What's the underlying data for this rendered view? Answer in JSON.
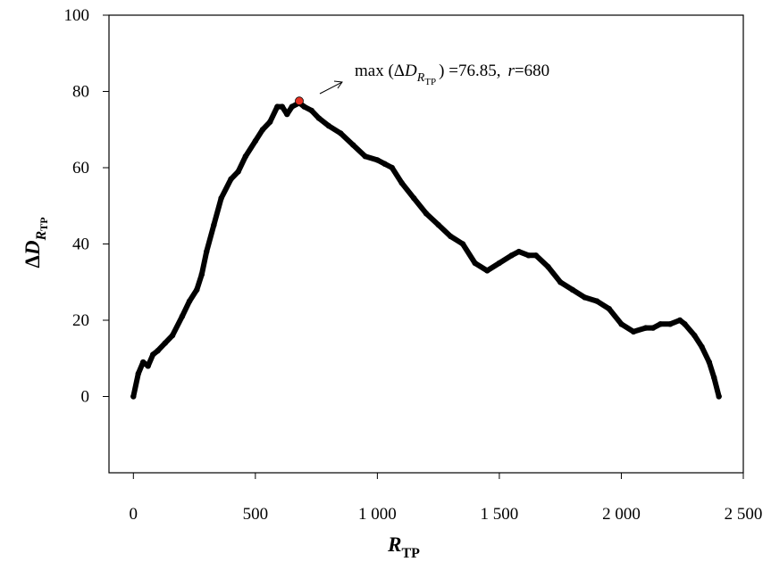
{
  "chart_data": {
    "type": "line",
    "xlabel": {
      "main": "R",
      "sub": "TP"
    },
    "ylabel": {
      "delta": "Δ",
      "main": "D",
      "sub_main": "R",
      "sub_sub": "TP"
    },
    "xlim": [
      -100,
      2500
    ],
    "ylim": [
      -20,
      100
    ],
    "x_ticks": [
      0,
      500,
      1000,
      1500,
      2000,
      2500
    ],
    "x_tick_labels": [
      "0",
      "500",
      "1 000",
      "1 500",
      "2 000",
      "2 500"
    ],
    "y_ticks": [
      0,
      20,
      40,
      60,
      80,
      100
    ],
    "y_tick_labels": [
      "0",
      "20",
      "40",
      "60",
      "80",
      "100"
    ],
    "grid": false,
    "series": [
      {
        "color": "#000000",
        "x": [
          0,
          20,
          40,
          60,
          80,
          100,
          130,
          160,
          200,
          230,
          260,
          280,
          300,
          330,
          360,
          400,
          430,
          460,
          500,
          530,
          560,
          590,
          610,
          630,
          650,
          680,
          700,
          730,
          760,
          800,
          850,
          900,
          950,
          1000,
          1030,
          1060,
          1100,
          1150,
          1200,
          1250,
          1300,
          1350,
          1400,
          1450,
          1500,
          1550,
          1580,
          1620,
          1650,
          1700,
          1750,
          1800,
          1850,
          1900,
          1950,
          2000,
          2050,
          2100,
          2130,
          2160,
          2200,
          2240,
          2260,
          2300,
          2330,
          2360,
          2380,
          2400
        ],
        "y": [
          0,
          6,
          9,
          8,
          11,
          12,
          14,
          16,
          21,
          25,
          28,
          32,
          38,
          45,
          52,
          57,
          59,
          63,
          67,
          70,
          72,
          76,
          76,
          74,
          76,
          77,
          76,
          75,
          73,
          71,
          69,
          66,
          63,
          62,
          61,
          60,
          56,
          52,
          48,
          45,
          42,
          40,
          35,
          33,
          35,
          37,
          38,
          37,
          37,
          34,
          30,
          28,
          26,
          25,
          23,
          19,
          17,
          18,
          18,
          19,
          19,
          20,
          19,
          16,
          13,
          9,
          5,
          0
        ]
      }
    ],
    "highlight": {
      "x": 680,
      "y": 77.5,
      "color": "#e53022"
    },
    "annotation": {
      "prefix": "max (Δ",
      "var": "D",
      "sub_main": "R",
      "sub_sub": "TP",
      "suffix": ") =76.85,",
      "r_label": "r",
      "r_value": "=680"
    }
  }
}
